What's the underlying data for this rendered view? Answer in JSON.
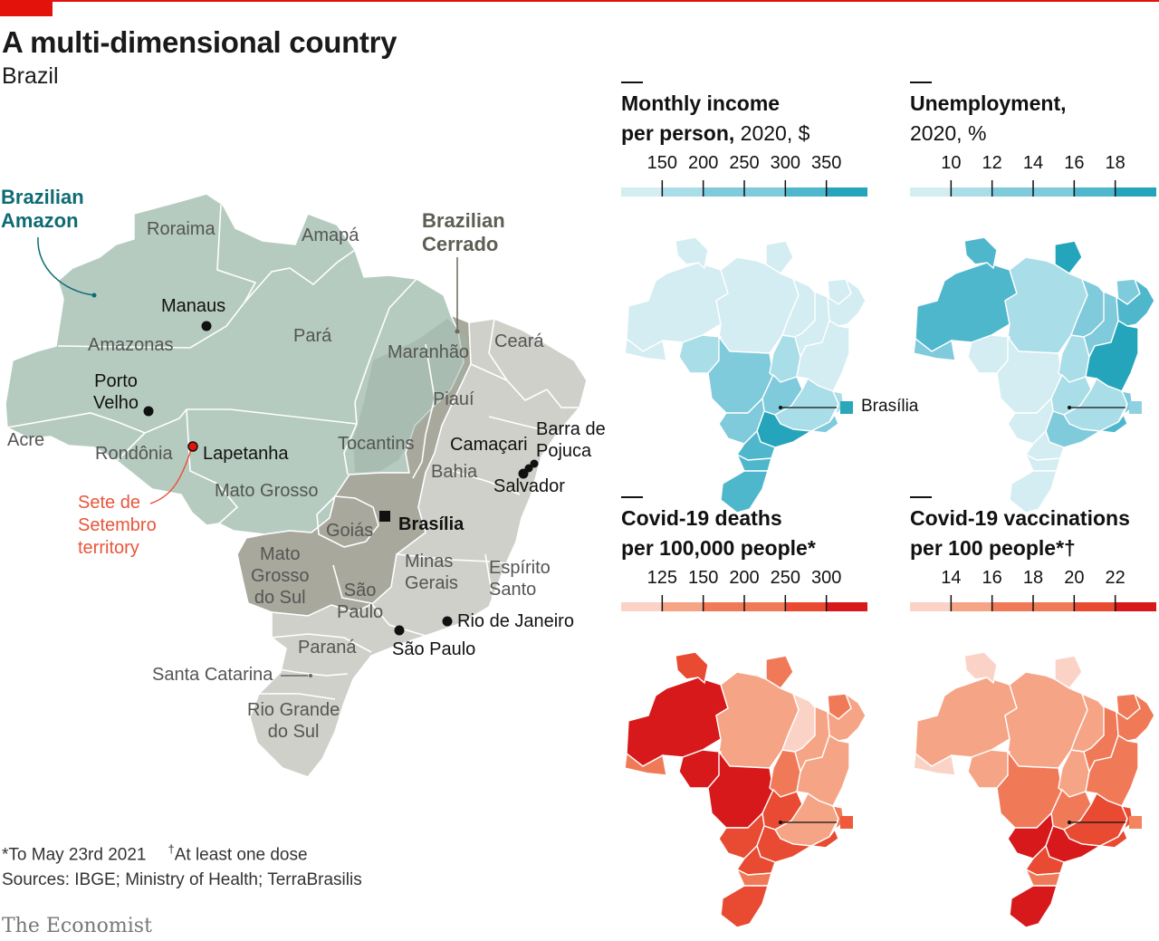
{
  "header": {
    "title": "A multi-dimensional country",
    "subtitle": "Brazil"
  },
  "main_map": {
    "biomes": {
      "amazon": "Brazilian\nAmazon",
      "cerrado": "Brazilian\nCerrado"
    },
    "states": {
      "roraima": "Roraima",
      "amapa": "Amapá",
      "amazonas": "Amazonas",
      "para": "Pará",
      "maranhao": "Maranhão",
      "ceara": "Ceará",
      "piaui": "Piauí",
      "acre": "Acre",
      "rondonia": "Rondônia",
      "tocantins": "Tocantins",
      "bahia": "Bahia",
      "mato_grosso": "Mato Grosso",
      "goias": "Goiás",
      "mato_grosso_do_sul": "Mato\nGrosso\ndo Sul",
      "minas_gerais": "Minas\nGerais",
      "espirito_santo": "Espírito\nSanto",
      "sao_paulo_state": "São\nPaulo",
      "parana": "Paraná",
      "santa_catarina": "Santa Catarina",
      "rio_grande_do_sul": "Rio Grande\ndo Sul"
    },
    "cities": {
      "manaus": "Manaus",
      "porto_velho": "Porto\nVelho",
      "lapetanha": "Lapetanha",
      "camacari": "Camaçari",
      "barra_de_pojuca": "Barra de\nPojuca",
      "salvador": "Salvador",
      "brasilia": "Brasília",
      "rio_de_janeiro": "Rio de Janeiro",
      "sao_paulo_city": "São Paulo"
    },
    "territory": "Sete de\nSetembro\nterritory"
  },
  "panels": [
    {
      "title_bold": "Monthly income\nper person,",
      "title_rest": " 2020, $",
      "palette": "blue",
      "ticks": [
        "150",
        "200",
        "250",
        "300",
        "350"
      ],
      "legend": "Brasília",
      "legend_color": "#2aa7b8"
    },
    {
      "title_bold": "Unemployment,",
      "title_rest": "\n2020, %",
      "palette": "blue",
      "ticks": [
        "10",
        "12",
        "14",
        "16",
        "18"
      ],
      "legend": "",
      "legend_color": "#8fd1e0"
    },
    {
      "title_bold": "Covid-19 deaths\nper 100,000 people*",
      "title_rest": "",
      "palette": "red",
      "ticks": [
        "125",
        "150",
        "200",
        "250",
        "300"
      ],
      "legend": "",
      "legend_color": "#ef5a3c"
    },
    {
      "title_bold": "Covid-19 vaccinations\nper 100 people*†",
      "title_rest": "",
      "palette": "red",
      "ticks": [
        "14",
        "16",
        "18",
        "20",
        "22"
      ],
      "legend": "",
      "legend_color": "#f3845f"
    }
  ],
  "colors": {
    "accent": "#e3120b",
    "blue_scale": [
      "#d4edf2",
      "#a9dde8",
      "#7fcadb",
      "#4fb7cc",
      "#25a5bb"
    ],
    "red_scale": [
      "#fbd3c6",
      "#f6a486",
      "#f07a58",
      "#e84a32",
      "#d7191c"
    ],
    "amazon": "#b5cbc0",
    "cerrado": "#a8a89c",
    "atlantic": "#d0d0ca"
  },
  "footer": {
    "note": "*To May 23rd 2021",
    "dagger": "†",
    "note2": "At least one dose",
    "sources": "Sources: IBGE; Ministry of Health; TerraBrasilis",
    "logo": "The Economist"
  }
}
